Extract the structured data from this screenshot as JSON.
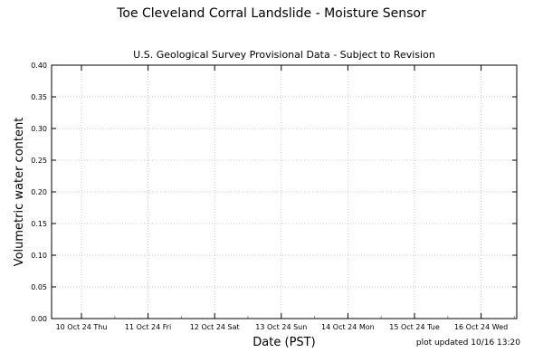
{
  "chart_data": {
    "type": "line",
    "title": "Toe Cleveland Corral Landslide - Moisture Sensor",
    "subtitle": "U.S. Geological Survey Provisional Data - Subject to Revision",
    "xlabel": "Date (PST)",
    "ylabel": "Volumetric water content",
    "footnote": "plot updated 10/16 13:20",
    "ylim": [
      0,
      0.4
    ],
    "y_ticks": [
      "0.00",
      "0.05",
      "0.10",
      "0.15",
      "0.20",
      "0.25",
      "0.30",
      "0.35",
      "0.40"
    ],
    "x_ticks": [
      "10 Oct 24 Thu",
      "11 Oct 24 Fri",
      "12 Oct 24 Sat",
      "13 Oct 24 Sun",
      "14 Oct 24 Mon",
      "15 Oct 24 Tue",
      "16 Oct 24 Wed"
    ],
    "grid": true,
    "series": []
  },
  "colors": {
    "grid": "#cccccc",
    "axis": "#000000"
  }
}
